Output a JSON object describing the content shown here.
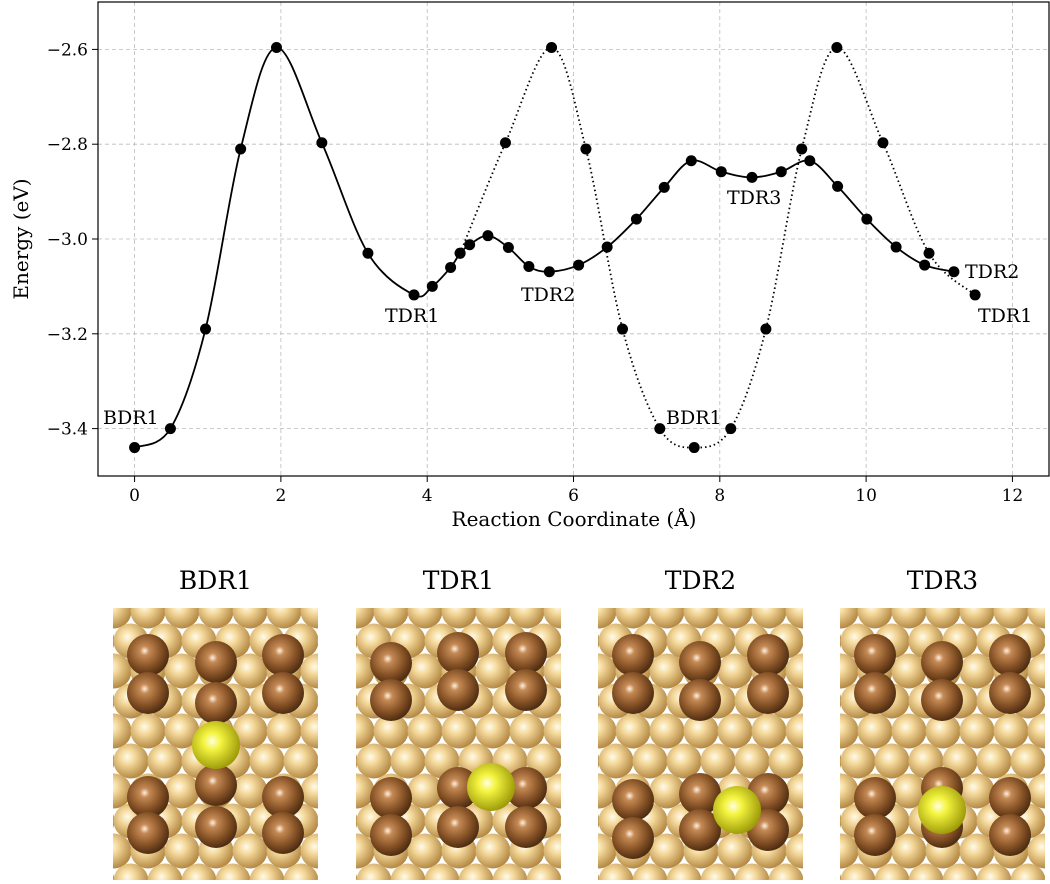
{
  "chart_data": {
    "type": "line",
    "xlabel": "Reaction Coordinate (Å)",
    "ylabel": "Energy (eV)",
    "xlim": [
      -0.5,
      12.5
    ],
    "ylim": [
      -3.5,
      -2.5
    ],
    "xticks": [
      0,
      2,
      4,
      6,
      8,
      10,
      12
    ],
    "yticks": [
      {
        "value": -3.4,
        "label": "−3.4"
      },
      {
        "value": -3.2,
        "label": "−3.2"
      },
      {
        "value": -3.0,
        "label": "−3.0"
      },
      {
        "value": -2.8,
        "label": "−2.8"
      },
      {
        "value": -2.6,
        "label": "−2.6"
      }
    ],
    "grid": true,
    "series": [
      {
        "color": "#000000",
        "linestyle": "solid",
        "x": [
          0,
          0.49,
          0.97,
          1.45,
          1.94,
          2.56,
          3.19,
          3.82,
          4.07,
          4.32,
          4.45,
          4.58,
          4.83,
          5.11,
          5.39,
          5.67,
          6.07,
          6.46,
          6.86,
          7.24,
          7.61,
          8.02,
          8.44,
          8.84,
          9.23,
          9.61,
          10.01,
          10.41,
          10.8,
          11.2
        ],
        "values": [
          -3.44,
          -3.4,
          -3.19,
          -2.81,
          -2.596,
          -2.797,
          -3.03,
          -3.118,
          -3.1,
          -3.06,
          -3.03,
          -3.012,
          -2.993,
          -3.018,
          -3.058,
          -3.069,
          -3.055,
          -3.017,
          -2.958,
          -2.891,
          -2.835,
          -2.858,
          -2.87,
          -2.858,
          -2.835,
          -2.889,
          -2.958,
          -3.017,
          -3.055,
          -3.069
        ]
      },
      {
        "color": "#000000",
        "linestyle": "dotted",
        "x": [
          4.45,
          5.07,
          5.7,
          6.17,
          6.67,
          7.18,
          7.65,
          8.15,
          8.63,
          9.12,
          9.6,
          10.23,
          10.86,
          11.49
        ],
        "values": [
          -3.03,
          -2.797,
          -2.596,
          -2.81,
          -3.19,
          -3.4,
          -3.44,
          -3.4,
          -3.19,
          -2.81,
          -2.596,
          -2.797,
          -3.03,
          -3.118
        ]
      }
    ],
    "annotations": [
      {
        "text": "BDR1"
      },
      {
        "text": "TDR1"
      },
      {
        "text": "TDR2"
      },
      {
        "text": "BDR1"
      },
      {
        "text": "TDR3"
      },
      {
        "text": "TDR2"
      },
      {
        "text": "TDR1"
      }
    ]
  },
  "panels": [
    {
      "title": "BDR1"
    },
    {
      "title": "TDR1"
    },
    {
      "title": "TDR2"
    },
    {
      "title": "TDR3"
    }
  ]
}
